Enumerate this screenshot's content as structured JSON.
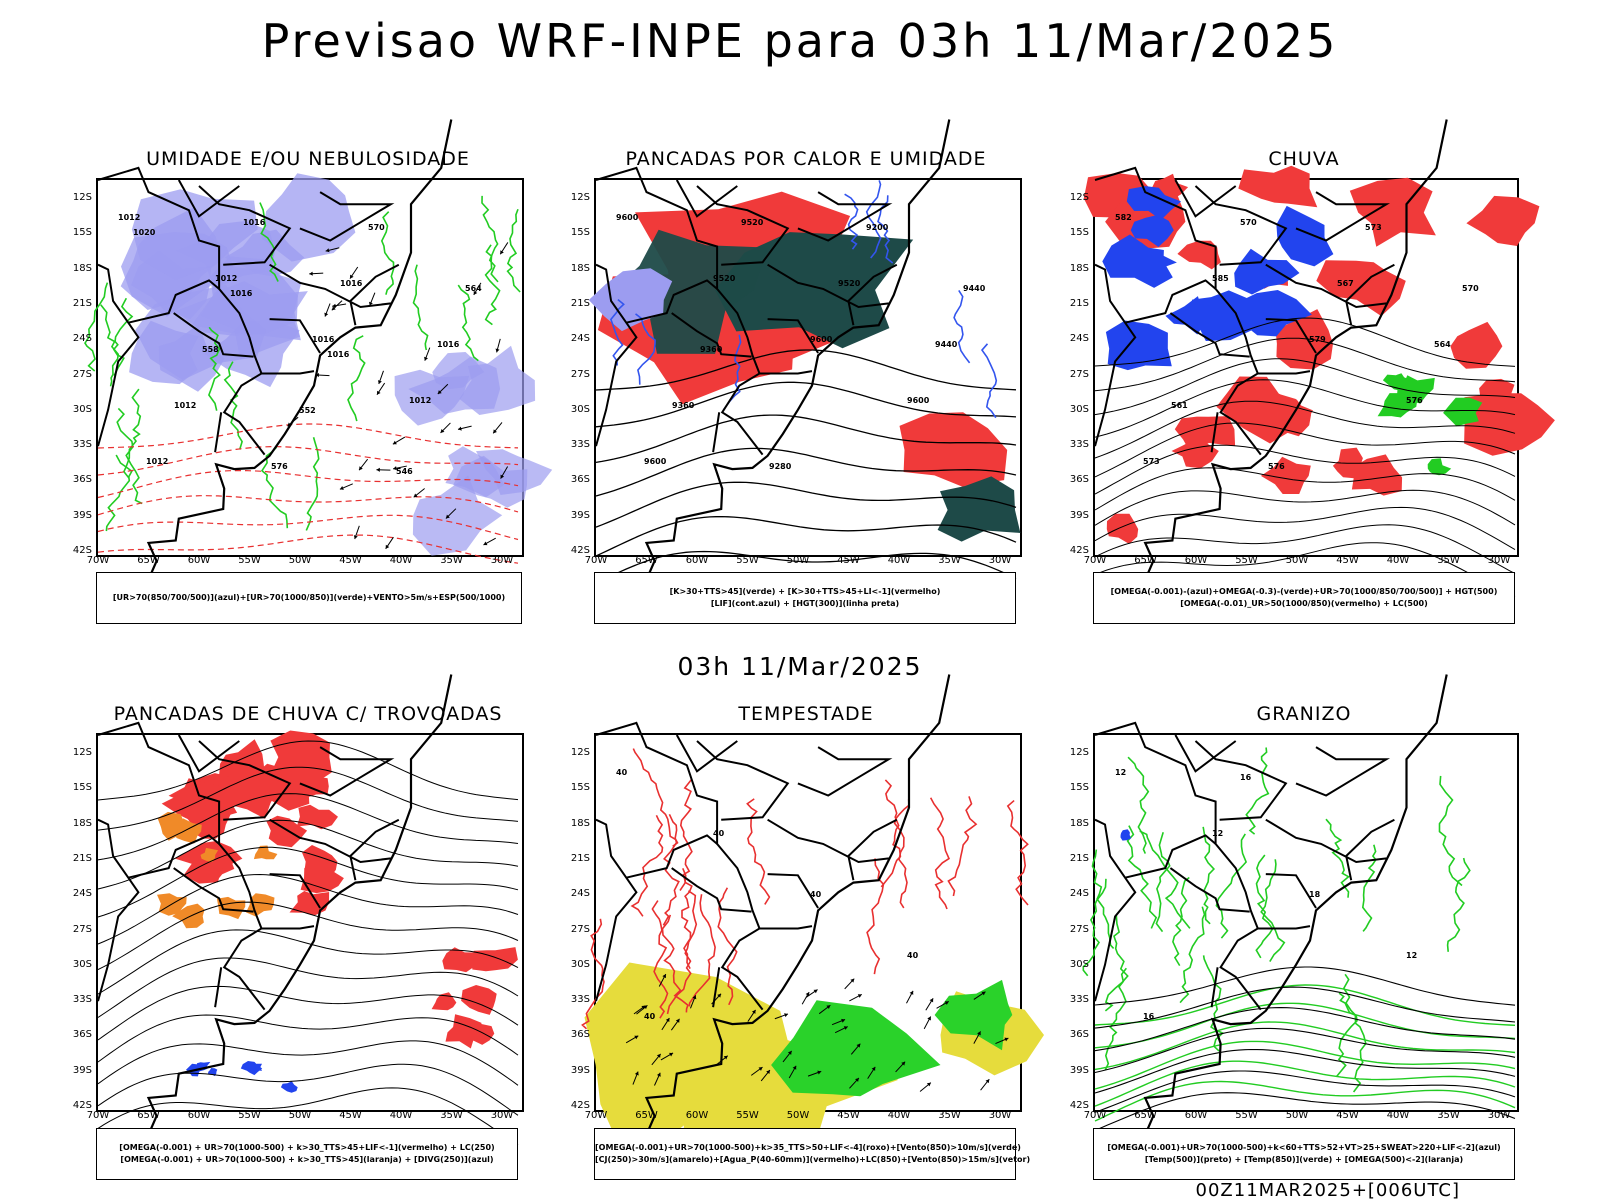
{
  "title": "Previsao WRF-INPE  para 03h 11/Mar/2025",
  "mid_title": "03h 11/Mar/2025",
  "footer": "00Z11MAR2025+[006UTC]",
  "lat_labels": [
    "12S",
    "15S",
    "18S",
    "21S",
    "24S",
    "27S",
    "30S",
    "33S",
    "36S",
    "39S",
    "42S"
  ],
  "lon_labels": [
    "70W",
    "65W",
    "60W",
    "55W",
    "50W",
    "45W",
    "40W",
    "35W",
    "30W"
  ],
  "colors": {
    "blue": "#9c9cf0",
    "green": "#22cc22",
    "red": "#f03a3a",
    "dark_teal": "#1e4a48",
    "yellow": "#e6dc3c",
    "orange": "#f08a28",
    "contour_red": "#e83030"
  },
  "panels": [
    {
      "key": "umidade",
      "title": "UMIDADE E/OU NEBULOSIDADE",
      "legend": [
        "[UR>70(850/700/500)](azul)+[UR>70(1000/850)](verde)+VENTO>5m/s+ESP(500/1000)"
      ],
      "contour_labels": [
        "1012",
        "1012",
        "1016",
        "1012",
        "1012",
        "1016",
        "1016",
        "1016",
        "1012",
        "576",
        "570",
        "564",
        "558",
        "552",
        "546",
        "1020",
        "1016",
        "1016"
      ]
    },
    {
      "key": "pancadas_calor",
      "title": "PANCADAS POR CALOR E UMIDADE",
      "legend": [
        "[K>30+TTS>45](verde) + [K>30+TTS>45+LI<-1](vermelho)",
        "[LIF](cont.azul) + [HGT(300)](linha preta)"
      ],
      "contour_labels": [
        "9600",
        "9520",
        "9600",
        "9600",
        "9600",
        "9520",
        "9520",
        "9440",
        "9360",
        "9280",
        "9200",
        "9440",
        "9360"
      ]
    },
    {
      "key": "chuva",
      "title": "CHUVA",
      "legend": [
        "[OMEGA(-0.001)-(azul)+OMEGA(-0.3)-(verde)+UR>70(1000/850/700/500)] + HGT(500)",
        "[OMEGA(-0.01)_UR>50(1000/850)(vermelho) + LC(500)"
      ],
      "contour_labels": [
        "582",
        "585",
        "579",
        "576",
        "573",
        "570",
        "567",
        "564",
        "561",
        "576",
        "573",
        "570"
      ]
    },
    {
      "key": "pancadas_trovoadas",
      "title": "PANCADAS DE CHUVA C/ TROVOADAS",
      "legend": [
        "[OMEGA(-0.001) + UR>70(1000-500) + k>30_TTS>45+LIF<-1](vermelho) + LC(250)",
        "[OMEGA(-0.001) + UR>70(1000-500) + k>30_TTS>45](laranja) + [DIVG(250)](azul)"
      ],
      "contour_labels": []
    },
    {
      "key": "tempestade",
      "title": "TEMPESTADE",
      "legend": [
        "[OMEGA(-0.001)+UR>70(1000-500)+k>35_TTS>50+LIF<-4](roxo)+[Vento(850)>10m/s](verde)",
        "[CJ(250)>30m/s](amarelo)+[Agua_P(40-60mm)](vermelho)+LC(850)+[Vento(850)>15m/s](vetor)"
      ],
      "contour_labels": [
        "40",
        "40",
        "40",
        "40",
        "40"
      ]
    },
    {
      "key": "granizo",
      "title": "GRANIZO",
      "legend": [
        "[OMEGA(-0.001)+UR>70(1000-500)+k<60+TTS>52+VT>25+SWEAT>220+LIF<-2](azul)",
        "[Temp(500)](preto) + [Temp(850)](verde) + [OMEGA(500)<-2](laranja)"
      ],
      "contour_labels": [
        "12",
        "12",
        "18",
        "12",
        "16",
        "16"
      ]
    }
  ]
}
